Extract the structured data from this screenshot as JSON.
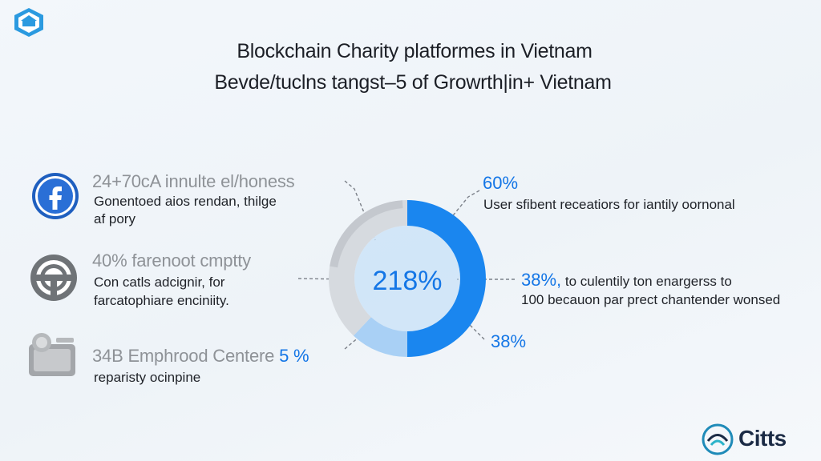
{
  "titles": {
    "line1": "Blockchain Charity platformes in Vietnam",
    "line2": "Bevde/tuclns tangst–5 of Growrth|in+ Vietnam"
  },
  "rows": [
    {
      "icon": "facebook-icon",
      "heading": "24+70cA innulte el/honess",
      "sub1": "Gonentoed aios rendan, thilge",
      "sub2": "af pory"
    },
    {
      "icon": "steering-wheel-icon",
      "heading": "40% farenoot cmptty",
      "sub1": "Con catls adcignir, for",
      "sub2": "farcatophiare enciniity."
    },
    {
      "icon": "charity-box-icon",
      "heading": "34B Emphrood Centere",
      "heading_highlight": "5 %",
      "sub1": "reparisty ocinpine",
      "sub2": ""
    }
  ],
  "callouts": [
    {
      "pct": "60%",
      "text1": "User sfibent receatiors for iantily oornonal",
      "text2": ""
    },
    {
      "pct": "38%,",
      "text1": " to culentily ton enargerss to",
      "text2": "100 becauon par prect chantender wonsed"
    },
    {
      "pct": "38%",
      "text1": "",
      "text2": ""
    }
  ],
  "chart_data": {
    "type": "pie",
    "style": "donut",
    "center_label": "218%",
    "slices": [
      {
        "value": 50,
        "color": "#1a86ef"
      },
      {
        "value": 12,
        "color": "#a9d0f5"
      },
      {
        "value": 38,
        "color": "#d6dadf"
      }
    ],
    "colors": {
      "primary": "#1a86ef",
      "light": "#a9d0f5",
      "grey": "#d6dadf",
      "grey_dark": "#c4c8ce",
      "inner": "#b9dbf7"
    }
  },
  "brand": {
    "text": "Citts",
    "icon": "circle-logo-icon"
  },
  "corner": {
    "icon": "shield-logo-icon"
  }
}
